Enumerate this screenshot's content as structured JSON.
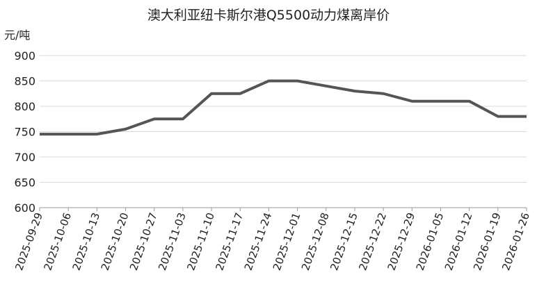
{
  "chart_data": {
    "type": "line",
    "title": "澳大利亚纽卡斯尔港Q5500动力煤离岸价",
    "y_label": "元/吨",
    "x": [
      "2025-09-29",
      "2025-10-06",
      "2025-10-13",
      "2025-10-20",
      "2025-10-27",
      "2025-11-03",
      "2025-11-10",
      "2025-11-17",
      "2025-11-24",
      "2025-12-01",
      "2025-12-08",
      "2025-12-15",
      "2025-12-22",
      "2025-12-29",
      "2026-01-05",
      "2026-01-12",
      "2026-01-19",
      "2026-01-26"
    ],
    "series": [
      {
        "name": "Q5500",
        "color": "#555555",
        "values": [
          745,
          745,
          745,
          755,
          775,
          775,
          825,
          825,
          850,
          850,
          840,
          830,
          825,
          810,
          810,
          810,
          780,
          780
        ]
      }
    ],
    "ylim": [
      600,
      900
    ],
    "yticks": [
      600,
      650,
      700,
      750,
      800,
      850,
      900
    ],
    "grid": true
  }
}
